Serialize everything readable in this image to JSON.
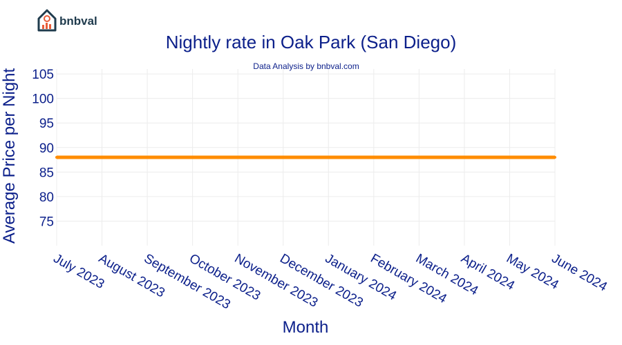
{
  "brand": {
    "name": "bnbval"
  },
  "chart_data": {
    "type": "line",
    "title": "Nightly rate in Oak Park (San Diego)",
    "subtitle": "Data Analysis by bnbval.com",
    "xlabel": "Month",
    "ylabel": "Average Price per Night",
    "categories": [
      "July 2023",
      "August 2023",
      "September 2023",
      "October 2023",
      "November 2023",
      "December 2023",
      "January 2024",
      "February 2024",
      "March 2024",
      "April 2024",
      "May 2024",
      "June 2024"
    ],
    "series": [
      {
        "values": [
          88,
          88,
          88,
          88,
          88,
          88,
          88,
          88,
          88,
          88,
          88,
          88
        ],
        "color": "#ff8c00"
      }
    ],
    "yticks": [
      75,
      80,
      85,
      90,
      95,
      100,
      105
    ],
    "ylim": [
      70,
      106
    ],
    "grid": true,
    "legend": "none"
  }
}
